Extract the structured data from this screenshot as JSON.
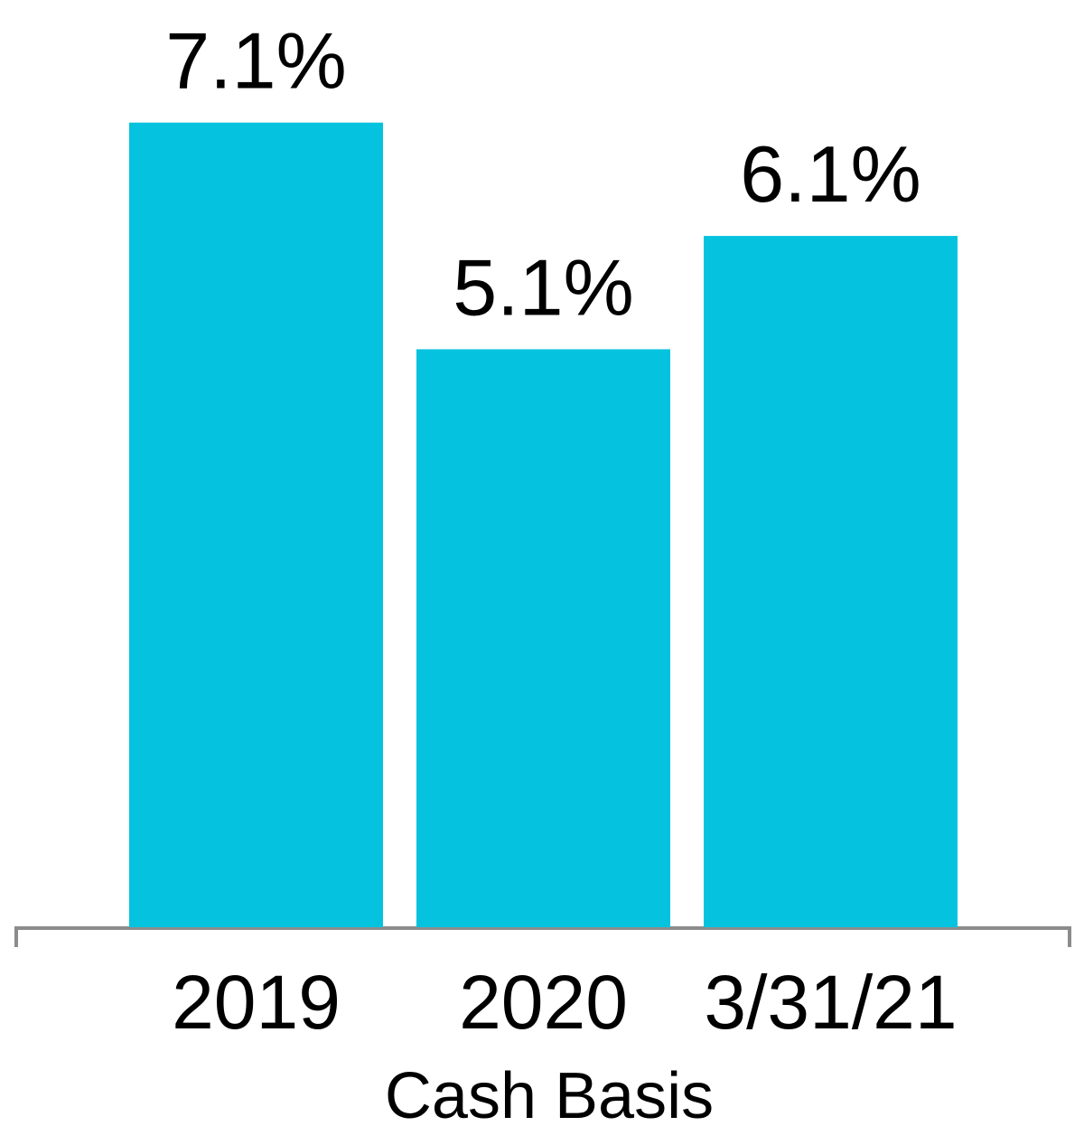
{
  "chart_data": {
    "type": "bar",
    "categories": [
      "2019",
      "2020",
      "3/31/21"
    ],
    "values": [
      7.1,
      5.1,
      6.1
    ],
    "value_labels": [
      "7.1%",
      "5.1%",
      "6.1%"
    ],
    "color": "#05c3de",
    "x_label": "Cash Basis"
  }
}
